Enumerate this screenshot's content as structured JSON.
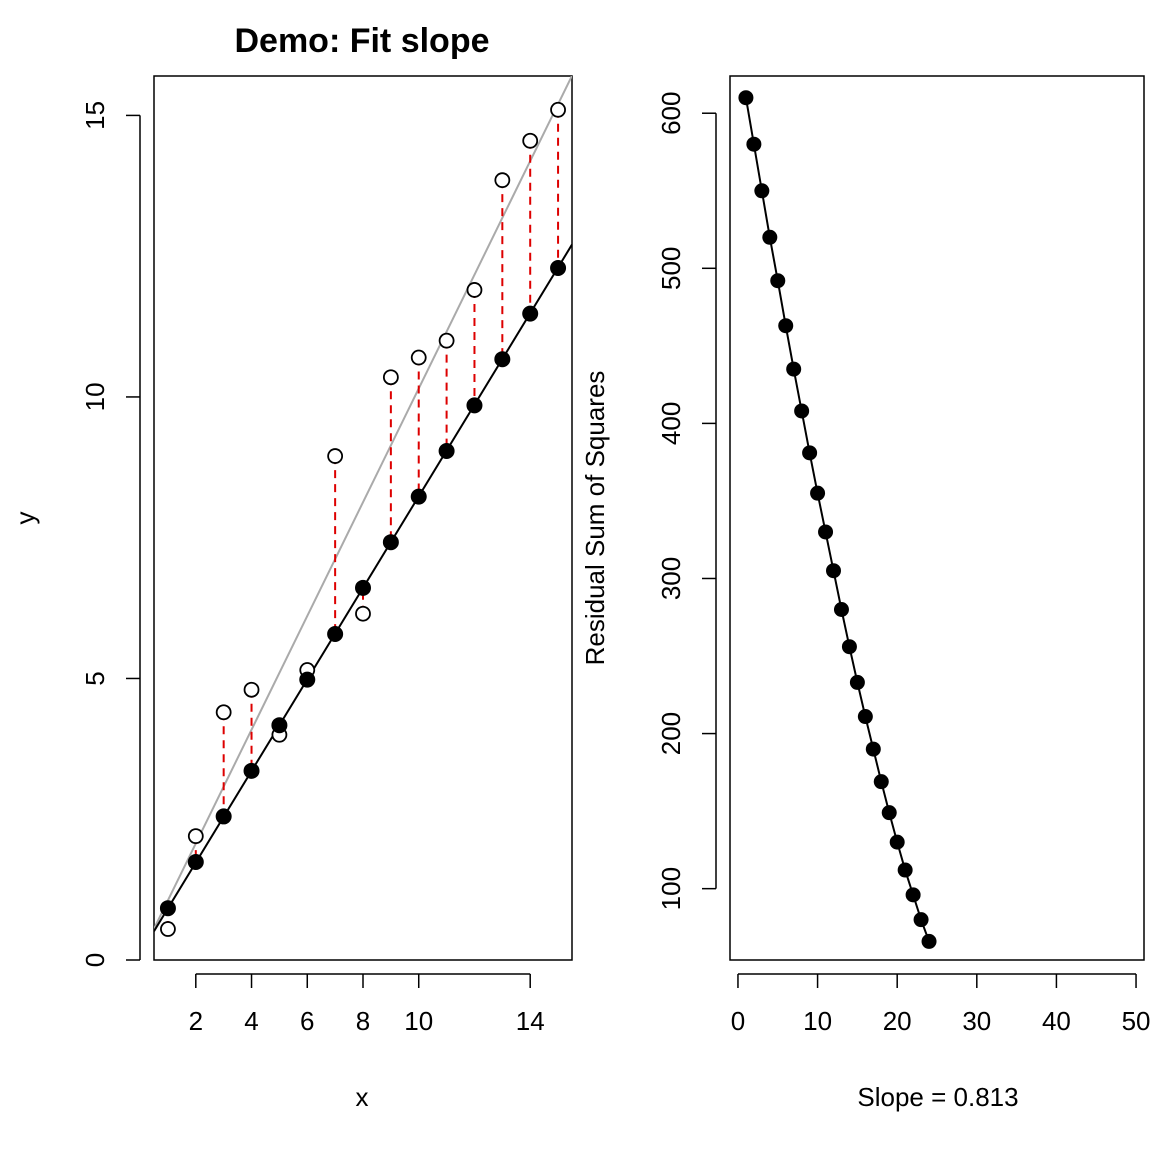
{
  "chart_data": [
    {
      "type": "scatter",
      "title": "Demo: Fit slope",
      "xlabel": "x",
      "ylabel": "y",
      "xlim": [
        0.5,
        15.5
      ],
      "ylim": [
        0,
        15.7
      ],
      "x_ticks": [
        2,
        4,
        6,
        8,
        10,
        14
      ],
      "y_ticks": [
        0,
        5,
        10,
        15
      ],
      "x_tick_labels": [
        "2",
        "4",
        "6",
        "8",
        "10",
        "14"
      ],
      "y_tick_labels": [
        "0",
        "5",
        "10",
        "15"
      ],
      "grid": false,
      "x": [
        1,
        2,
        3,
        4,
        5,
        6,
        7,
        8,
        9,
        10,
        11,
        12,
        13,
        14,
        15
      ],
      "observed": [
        0.55,
        2.2,
        4.4,
        4.8,
        4.0,
        5.15,
        8.95,
        6.15,
        10.35,
        10.7,
        11.0,
        11.9,
        13.85,
        14.55,
        15.1
      ],
      "fitted": [
        0.92,
        1.74,
        2.55,
        3.36,
        4.17,
        4.98,
        5.79,
        6.61,
        7.42,
        8.23,
        9.04,
        9.85,
        10.67,
        11.48,
        12.29
      ],
      "fitted_line": {
        "slope": 0.813,
        "intercept": 0.105,
        "color": "#000000"
      },
      "reference_line": {
        "slope": 1.01,
        "intercept": 0.05,
        "color": "#aaaaaa"
      },
      "residual_color": "#dd0000"
    },
    {
      "type": "line",
      "xlabel": "Slope = 0.813",
      "ylabel": "Residual Sum of Squares",
      "xlim": [
        -1,
        51
      ],
      "ylim": [
        54,
        624
      ],
      "x_ticks": [
        0,
        10,
        20,
        30,
        40,
        50
      ],
      "y_ticks": [
        100,
        200,
        300,
        400,
        500,
        600
      ],
      "x_tick_labels": [
        "0",
        "10",
        "20",
        "30",
        "40",
        "50"
      ],
      "y_tick_labels": [
        "100",
        "200",
        "300",
        "400",
        "500",
        "600"
      ],
      "grid": false,
      "x": [
        1,
        2,
        3,
        4,
        5,
        6,
        7,
        8,
        9,
        10,
        11,
        12,
        13,
        14,
        15,
        16,
        17,
        18,
        19,
        20,
        21,
        22,
        23,
        24
      ],
      "y": [
        610,
        580,
        550,
        520,
        492,
        463,
        435,
        408,
        381,
        355,
        330,
        305,
        280,
        256,
        233,
        211,
        190,
        169,
        149,
        130,
        112,
        96,
        80,
        66
      ]
    }
  ]
}
